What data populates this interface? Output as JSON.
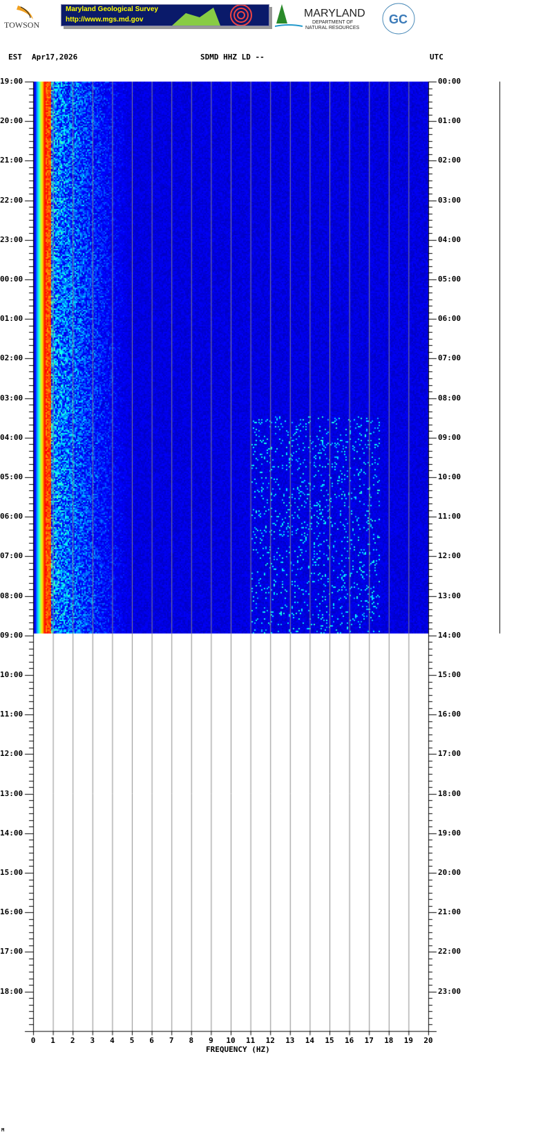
{
  "header": {
    "logos": [
      "TOWSON UNIVERSITY",
      "Maryland Geological Survey",
      "MARYLAND DEPARTMENT OF NATURAL RESOURCES",
      "GC"
    ],
    "banner_title": "Maryland Geological Survey",
    "banner_url": "http://www.mgs.md.gov",
    "left_timezone": "EST",
    "date": "Apr17,2026",
    "station": "SDMD HHZ LD --",
    "right_timezone": "UTC"
  },
  "chart_data": {
    "type": "heatmap",
    "title": "SDMD HHZ LD --",
    "xlabel": "FREQUENCY (HZ)",
    "xlim": [
      0,
      20
    ],
    "x_ticks": [
      "0",
      "1",
      "2",
      "3",
      "4",
      "5",
      "6",
      "7",
      "8",
      "9",
      "10",
      "11",
      "12",
      "13",
      "14",
      "15",
      "16",
      "17",
      "18",
      "19",
      "20"
    ],
    "left_y_ticks": [
      "19:00",
      "20:00",
      "21:00",
      "22:00",
      "23:00",
      "00:00",
      "01:00",
      "02:00",
      "03:00",
      "04:00",
      "05:00",
      "06:00",
      "07:00",
      "08:00",
      "09:00",
      "10:00",
      "11:00",
      "12:00",
      "13:00",
      "14:00",
      "15:00",
      "16:00",
      "17:00",
      "18:00"
    ],
    "right_y_ticks": [
      "00:00",
      "01:00",
      "02:00",
      "03:00",
      "04:00",
      "05:00",
      "06:00",
      "07:00",
      "08:00",
      "09:00",
      "10:00",
      "11:00",
      "12:00",
      "13:00",
      "14:00",
      "15:00",
      "16:00",
      "17:00",
      "18:00",
      "19:00",
      "20:00",
      "21:00",
      "22:00",
      "23:00"
    ],
    "data_end_hours": 13.95,
    "grid": true,
    "colormap": [
      "#00008b",
      "#0000ff",
      "#00ffff",
      "#ffff00",
      "#ff0000"
    ]
  },
  "footer": {
    "mark": "M"
  }
}
